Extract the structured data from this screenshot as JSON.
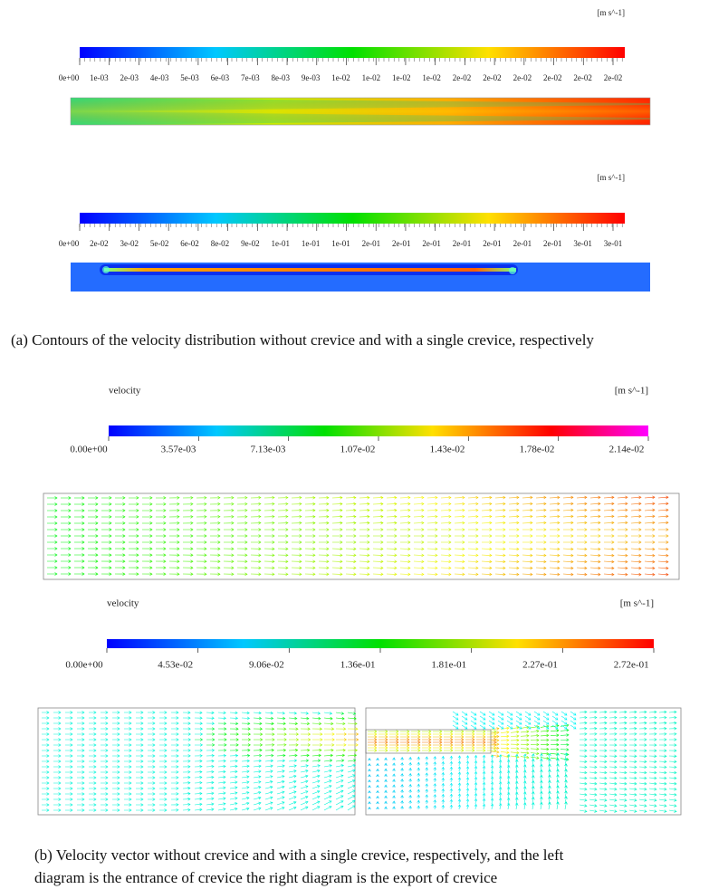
{
  "panel_a": {
    "colorbar_1": {
      "unit": "[m s^-1]",
      "ticks": [
        "0e+00",
        "1e-03",
        "2e-03",
        "4e-03",
        "5e-03",
        "6e-03",
        "7e-03",
        "8e-03",
        "9e-03",
        "1e-02",
        "1e-02",
        "1e-02",
        "1e-02",
        "2e-02",
        "2e-02",
        "2e-02",
        "2e-02",
        "2e-02",
        "2e-02"
      ]
    },
    "colorbar_2": {
      "unit": "[m s^-1]",
      "ticks": [
        "0e+00",
        "2e-02",
        "3e-02",
        "5e-02",
        "6e-02",
        "8e-02",
        "9e-02",
        "1e-01",
        "1e-01",
        "1e-01",
        "2e-01",
        "2e-01",
        "2e-01",
        "2e-01",
        "2e-01",
        "2e-01",
        "2e-01",
        "3e-01",
        "3e-01"
      ]
    },
    "caption": "(a)  Contours of the velocity distribution without crevice and with a single crevice, respectively"
  },
  "panel_b": {
    "colorbar_1": {
      "title": "velocity",
      "unit": "[m s^-1]",
      "ticks": [
        "0.00e+00",
        "3.57e-03",
        "7.13e-03",
        "1.07e-02",
        "1.43e-02",
        "1.78e-02",
        "2.14e-02"
      ]
    },
    "colorbar_2": {
      "title": "velocity",
      "unit": "[m s^-1]",
      "ticks": [
        "0.00e+00",
        "4.53e-02",
        "9.06e-02",
        "1.36e-01",
        "1.81e-01",
        "2.27e-01",
        "2.72e-01"
      ]
    },
    "caption_lines": [
      "(b) Velocity vector without crevice and with a single crevice, respectively, and the left",
      "diagram is the entrance of crevice the right diagram is the export of crevice"
    ]
  }
}
